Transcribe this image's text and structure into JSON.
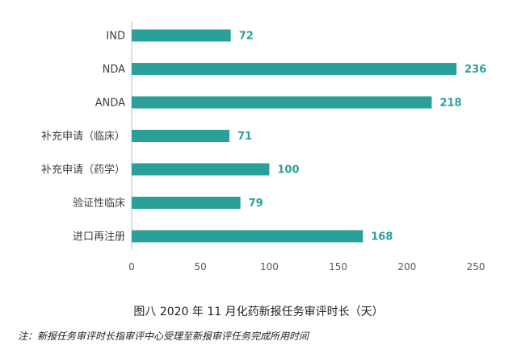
{
  "chart_data": {
    "type": "bar",
    "orientation": "horizontal",
    "categories": [
      "IND",
      "NDA",
      "ANDA",
      "补充申请（临床）",
      "补充申请（药学）",
      "验证性临床",
      "进口再注册"
    ],
    "values": [
      72,
      236,
      218,
      71,
      100,
      79,
      168
    ],
    "xlim": [
      0,
      250
    ],
    "xticks": [
      0,
      50,
      100,
      150,
      200,
      250
    ],
    "grid": false,
    "legend": "none",
    "bar_color": "#2aa198",
    "value_label_color": "#2aa198"
  },
  "caption": "图八  2020 年 11 月化药新报任务审评时长（天）",
  "note": "注：新报任务审评时长指审评中心受理至新报审评任务完成所用时间"
}
